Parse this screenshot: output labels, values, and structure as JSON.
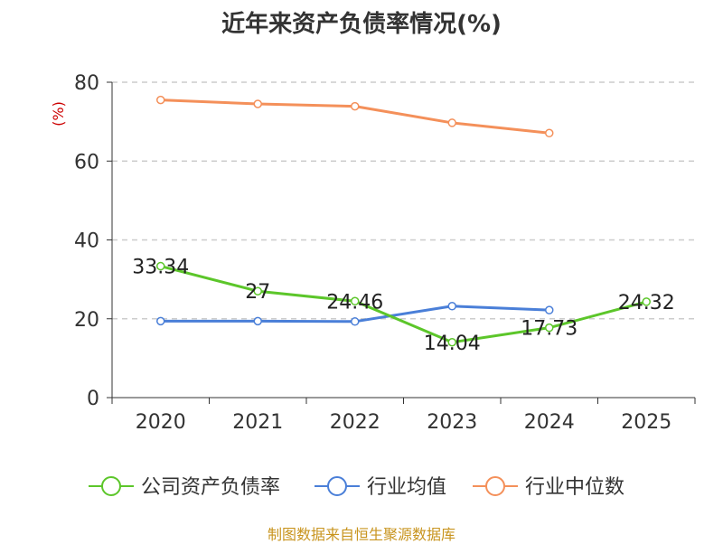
{
  "chart_data": {
    "type": "line",
    "title": "近年来资产负债率情况(%)",
    "ylabel": "(%)",
    "xlabel": "",
    "categories": [
      "2020",
      "2021",
      "2022",
      "2023",
      "2024",
      "2025"
    ],
    "ylim": [
      0,
      80
    ],
    "yticks": [
      0,
      20,
      40,
      60,
      80
    ],
    "grid": true,
    "legend_position": "bottom",
    "series": [
      {
        "name": "公司资产负债率",
        "color": "#5cc62a",
        "values": [
          33.34,
          27,
          24.46,
          14.04,
          17.73,
          24.32
        ],
        "labels": [
          "33.34",
          "27",
          "24.46",
          "14.04",
          "17.73",
          "24.32"
        ]
      },
      {
        "name": "行业均值",
        "color": "#4a7fd8",
        "values": [
          19.4,
          19.4,
          19.3,
          23.2,
          22.2,
          null
        ]
      },
      {
        "name": "行业中位数",
        "color": "#f4905a",
        "values": [
          75.5,
          74.5,
          73.9,
          69.7,
          67.1,
          null
        ]
      }
    ]
  },
  "source": "制图数据来自恒生聚源数据库"
}
